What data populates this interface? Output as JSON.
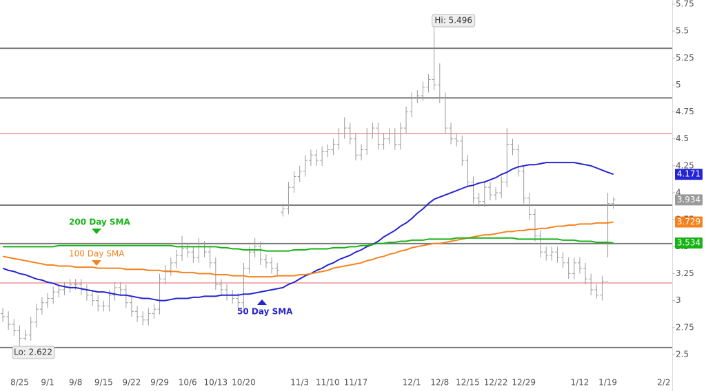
{
  "chart_data": {
    "type": "ohlc",
    "categories": [
      null,
      null,
      null,
      "8/25",
      null,
      null,
      null,
      null,
      "9/1",
      null,
      null,
      null,
      null,
      "9/8",
      null,
      null,
      null,
      null,
      "9/15",
      null,
      null,
      null,
      null,
      "9/22",
      null,
      null,
      null,
      null,
      "9/29",
      null,
      null,
      null,
      null,
      "10/6",
      null,
      null,
      null,
      null,
      "10/13",
      null,
      null,
      null,
      null,
      "10/20",
      null,
      null,
      null,
      null,
      null,
      null,
      null,
      null,
      null,
      "11/3",
      null,
      null,
      null,
      null,
      "11/10",
      null,
      null,
      null,
      null,
      "11/17",
      null,
      null,
      null,
      null,
      null,
      null,
      null,
      null,
      null,
      "12/1",
      null,
      null,
      null,
      null,
      "12/8",
      null,
      null,
      null,
      null,
      "12/15",
      null,
      null,
      null,
      null,
      "12/22",
      null,
      null,
      null,
      null,
      "12/29",
      null,
      null,
      null,
      null,
      null,
      null,
      null,
      null,
      null,
      "1/12",
      null,
      null,
      null,
      null,
      "1/19",
      null,
      null,
      null,
      null,
      null,
      null,
      null,
      null,
      null,
      "2/2",
      null
    ],
    "ohlc": {
      "color": "#9a9a9a",
      "open": [
        2.88,
        2.85,
        2.78,
        2.72,
        2.65,
        2.68,
        2.8,
        2.92,
        2.98,
        3.02,
        3.08,
        3.1,
        3.12,
        3.15,
        3.15,
        3.1,
        3.05,
        3.0,
        2.95,
        2.95,
        3.05,
        3.12,
        3.1,
        2.98,
        2.9,
        2.85,
        2.82,
        2.88,
        2.92,
        3.2,
        3.28,
        3.35,
        3.42,
        3.48,
        3.45,
        3.4,
        3.5,
        3.45,
        3.35,
        3.15,
        3.1,
        3.05,
        3.02,
        2.98,
        3.3,
        3.45,
        3.5,
        3.38,
        3.35,
        3.3,
        3.82,
        3.85,
        4.05,
        4.15,
        4.2,
        4.3,
        4.35,
        4.3,
        4.38,
        4.4,
        4.45,
        4.55,
        4.6,
        4.5,
        4.35,
        4.4,
        4.55,
        4.6,
        4.45,
        4.5,
        4.55,
        4.45,
        4.6,
        4.75,
        4.88,
        4.9,
        4.98,
        5.05,
        5.0,
        4.88,
        4.6,
        4.5,
        4.48,
        4.3,
        4.1,
        3.95,
        3.92,
        4.05,
        3.98,
        4.0,
        4.1,
        4.45,
        4.4,
        4.2,
        3.95,
        3.8,
        3.6,
        3.45,
        3.42,
        3.45,
        3.4,
        3.35,
        3.25,
        3.35,
        3.3,
        3.2,
        3.1,
        3.05,
        3.18,
        3.9,
        null,
        null,
        null,
        null,
        null,
        null,
        null,
        null,
        null,
        null
      ],
      "high": [
        2.93,
        2.9,
        2.83,
        2.77,
        2.73,
        2.85,
        2.97,
        3.03,
        3.07,
        3.13,
        3.15,
        3.17,
        3.2,
        3.2,
        3.2,
        3.15,
        3.1,
        3.05,
        3.0,
        3.1,
        3.17,
        3.17,
        3.15,
        3.03,
        2.95,
        2.9,
        2.93,
        2.97,
        3.25,
        3.33,
        3.4,
        3.47,
        3.6,
        3.53,
        3.5,
        3.58,
        3.55,
        3.5,
        3.4,
        3.2,
        3.15,
        3.1,
        3.07,
        3.35,
        3.5,
        3.58,
        3.55,
        3.43,
        3.4,
        3.35,
        3.9,
        4.1,
        4.2,
        4.25,
        4.35,
        4.4,
        4.4,
        4.43,
        4.45,
        4.5,
        4.6,
        4.7,
        4.65,
        4.55,
        4.45,
        4.6,
        4.65,
        4.65,
        4.55,
        4.6,
        4.6,
        4.65,
        4.8,
        4.93,
        4.95,
        5.03,
        5.1,
        5.496,
        5.2,
        4.93,
        4.65,
        4.55,
        4.53,
        4.35,
        4.15,
        4.0,
        4.1,
        4.1,
        4.05,
        4.15,
        4.6,
        4.5,
        4.45,
        4.25,
        4.0,
        3.85,
        3.65,
        3.5,
        3.5,
        3.5,
        3.45,
        3.4,
        3.4,
        3.4,
        3.35,
        3.25,
        3.15,
        3.23,
        4.0,
        3.96,
        null,
        null,
        null,
        null,
        null,
        null,
        null,
        null,
        null,
        null
      ],
      "low": [
        2.8,
        2.73,
        2.67,
        2.622,
        2.63,
        2.63,
        2.75,
        2.87,
        2.93,
        2.97,
        3.03,
        3.05,
        3.07,
        3.1,
        3.05,
        3.0,
        2.95,
        2.9,
        2.9,
        2.9,
        3.0,
        3.05,
        2.93,
        2.85,
        2.8,
        2.77,
        2.77,
        2.83,
        2.87,
        3.15,
        3.23,
        3.3,
        3.37,
        3.4,
        3.35,
        3.35,
        3.4,
        3.3,
        3.1,
        3.05,
        3.0,
        2.97,
        2.93,
        2.93,
        3.25,
        3.4,
        3.33,
        3.3,
        3.25,
        3.23,
        3.78,
        3.8,
        4.0,
        4.1,
        4.15,
        4.25,
        4.25,
        4.25,
        4.33,
        4.35,
        4.4,
        4.5,
        4.45,
        4.3,
        4.3,
        4.35,
        4.5,
        4.4,
        4.4,
        4.45,
        4.4,
        4.4,
        4.55,
        4.7,
        4.83,
        4.85,
        4.93,
        4.95,
        4.83,
        4.55,
        4.45,
        4.43,
        4.25,
        4.05,
        3.9,
        3.87,
        3.87,
        3.93,
        3.93,
        3.95,
        4.05,
        4.35,
        4.15,
        3.9,
        3.75,
        3.55,
        3.4,
        3.37,
        3.37,
        3.35,
        3.3,
        3.2,
        3.2,
        3.25,
        3.15,
        3.05,
        3.02,
        3.0,
        3.4,
        3.85,
        null,
        null,
        null,
        null,
        null,
        null,
        null,
        null,
        null,
        null
      ],
      "close": [
        2.85,
        2.78,
        2.72,
        2.65,
        2.68,
        2.8,
        2.92,
        2.98,
        3.02,
        3.08,
        3.1,
        3.12,
        3.15,
        3.15,
        3.1,
        3.05,
        3.0,
        2.95,
        2.95,
        3.05,
        3.12,
        3.1,
        2.98,
        2.9,
        2.85,
        2.82,
        2.88,
        2.92,
        3.2,
        3.28,
        3.35,
        3.42,
        3.48,
        3.45,
        3.4,
        3.5,
        3.45,
        3.35,
        3.15,
        3.1,
        3.05,
        3.02,
        2.98,
        3.3,
        3.45,
        3.5,
        3.38,
        3.35,
        3.3,
        3.28,
        3.85,
        4.05,
        4.15,
        4.2,
        4.3,
        4.35,
        4.3,
        4.38,
        4.4,
        4.45,
        4.55,
        4.6,
        4.5,
        4.35,
        4.4,
        4.55,
        4.6,
        4.45,
        4.5,
        4.55,
        4.45,
        4.6,
        4.75,
        4.88,
        4.9,
        4.98,
        5.05,
        5.0,
        4.88,
        4.6,
        4.5,
        4.48,
        4.3,
        4.1,
        3.95,
        3.92,
        4.05,
        3.98,
        4.0,
        4.1,
        4.45,
        4.4,
        4.2,
        3.95,
        3.8,
        3.6,
        3.45,
        3.42,
        3.45,
        3.4,
        3.35,
        3.25,
        3.35,
        3.3,
        3.2,
        3.1,
        3.05,
        3.18,
        3.9,
        3.934,
        null,
        null,
        null,
        null,
        null,
        null,
        null,
        null,
        null,
        null
      ]
    },
    "series": [
      {
        "name": "50 Day SMA",
        "color": "#2424d0",
        "values": [
          3.3,
          3.28,
          3.27,
          3.25,
          3.24,
          3.22,
          3.2,
          3.19,
          3.17,
          3.16,
          3.14,
          3.13,
          3.12,
          3.12,
          3.11,
          3.1,
          3.09,
          3.08,
          3.08,
          3.07,
          3.06,
          3.05,
          3.05,
          3.04,
          3.03,
          3.02,
          3.02,
          3.01,
          3.0,
          3.0,
          3.01,
          3.02,
          3.02,
          3.02,
          3.03,
          3.03,
          3.04,
          3.04,
          3.04,
          3.05,
          3.05,
          3.05,
          3.05,
          3.06,
          3.06,
          3.07,
          3.08,
          3.09,
          3.1,
          3.11,
          3.12,
          3.15,
          3.17,
          3.2,
          3.23,
          3.25,
          3.28,
          3.3,
          3.33,
          3.35,
          3.38,
          3.4,
          3.42,
          3.45,
          3.47,
          3.5,
          3.52,
          3.55,
          3.59,
          3.62,
          3.65,
          3.69,
          3.72,
          3.76,
          3.81,
          3.85,
          3.9,
          3.94,
          3.96,
          3.98,
          4.0,
          4.02,
          4.04,
          4.06,
          4.07,
          4.09,
          4.1,
          4.12,
          4.14,
          4.17,
          4.19,
          4.22,
          4.24,
          4.25,
          4.26,
          4.26,
          4.27,
          4.28,
          4.28,
          4.28,
          4.28,
          4.28,
          4.28,
          4.27,
          4.26,
          4.25,
          4.23,
          4.21,
          4.19,
          4.171,
          null,
          null,
          null,
          null,
          null,
          null,
          null,
          null,
          null,
          null
        ]
      },
      {
        "name": "100  Day SMA",
        "color": "#f5821f",
        "values": [
          3.41,
          3.4,
          3.39,
          3.38,
          3.37,
          3.36,
          3.35,
          3.34,
          3.33,
          3.33,
          3.32,
          3.32,
          3.32,
          3.31,
          3.31,
          3.31,
          3.31,
          3.3,
          3.3,
          3.3,
          3.3,
          3.3,
          3.29,
          3.29,
          3.29,
          3.29,
          3.28,
          3.28,
          3.28,
          3.27,
          3.27,
          3.27,
          3.26,
          3.26,
          3.26,
          3.25,
          3.25,
          3.25,
          3.24,
          3.24,
          3.24,
          3.23,
          3.23,
          3.23,
          3.22,
          3.22,
          3.22,
          3.22,
          3.22,
          3.23,
          3.23,
          3.23,
          3.23,
          3.24,
          3.24,
          3.25,
          3.26,
          3.27,
          3.28,
          3.3,
          3.31,
          3.32,
          3.33,
          3.34,
          3.35,
          3.37,
          3.38,
          3.4,
          3.41,
          3.43,
          3.44,
          3.46,
          3.47,
          3.49,
          3.5,
          3.51,
          3.52,
          3.53,
          3.53,
          3.54,
          3.55,
          3.56,
          3.57,
          3.58,
          3.59,
          3.6,
          3.61,
          3.61,
          3.62,
          3.63,
          3.64,
          3.64,
          3.65,
          3.65,
          3.66,
          3.66,
          3.67,
          3.67,
          3.68,
          3.69,
          3.69,
          3.7,
          3.7,
          3.71,
          3.71,
          3.71,
          3.72,
          3.72,
          3.72,
          3.729,
          null,
          null,
          null,
          null,
          null,
          null,
          null,
          null,
          null,
          null
        ]
      },
      {
        "name": "200 Day SMA",
        "color": "#16b316",
        "values": [
          3.5,
          3.5,
          3.5,
          3.5,
          3.5,
          3.5,
          3.5,
          3.5,
          3.5,
          3.5,
          3.51,
          3.51,
          3.51,
          3.51,
          3.51,
          3.51,
          3.51,
          3.51,
          3.51,
          3.51,
          3.51,
          3.51,
          3.51,
          3.51,
          3.51,
          3.51,
          3.51,
          3.51,
          3.51,
          3.51,
          3.51,
          3.5,
          3.5,
          3.5,
          3.5,
          3.5,
          3.5,
          3.5,
          3.5,
          3.49,
          3.49,
          3.48,
          3.48,
          3.47,
          3.47,
          3.47,
          3.47,
          3.46,
          3.46,
          3.46,
          3.46,
          3.46,
          3.47,
          3.47,
          3.47,
          3.48,
          3.48,
          3.48,
          3.48,
          3.49,
          3.49,
          3.49,
          3.5,
          3.5,
          3.51,
          3.51,
          3.52,
          3.53,
          3.53,
          3.54,
          3.54,
          3.55,
          3.55,
          3.56,
          3.56,
          3.56,
          3.57,
          3.57,
          3.57,
          3.57,
          3.57,
          3.58,
          3.58,
          3.58,
          3.58,
          3.58,
          3.58,
          3.58,
          3.58,
          3.58,
          3.58,
          3.58,
          3.57,
          3.57,
          3.57,
          3.57,
          3.57,
          3.57,
          3.57,
          3.57,
          3.56,
          3.56,
          3.56,
          3.55,
          3.55,
          3.55,
          3.54,
          3.54,
          3.54,
          3.534,
          null,
          null,
          null,
          null,
          null,
          null,
          null,
          null,
          null,
          null
        ]
      }
    ],
    "levels": [
      {
        "value": 5.34,
        "color": "#7a7a7a"
      },
      {
        "value": 4.88,
        "color": "#7a7a7a"
      },
      {
        "value": 3.885,
        "color": "#7a7a7a"
      },
      {
        "value": 3.528,
        "color": "#7a7a7a"
      },
      {
        "value": 2.564,
        "color": "#7a7a7a"
      },
      {
        "value": 4.55,
        "color": "#e06060"
      },
      {
        "value": 3.164,
        "color": "#e06060"
      }
    ],
    "annotations": [
      {
        "text": "Hi: 5.496"
      },
      {
        "text": "Lo: 2.622"
      }
    ],
    "ylim": [
      2.308,
      5.788
    ],
    "yticks": [
      2.5,
      2.75,
      3,
      3.25,
      3.5,
      3.75,
      4,
      4.25,
      4.5,
      4.75,
      5,
      5.25,
      5.5,
      5.75
    ],
    "grid": false
  }
}
